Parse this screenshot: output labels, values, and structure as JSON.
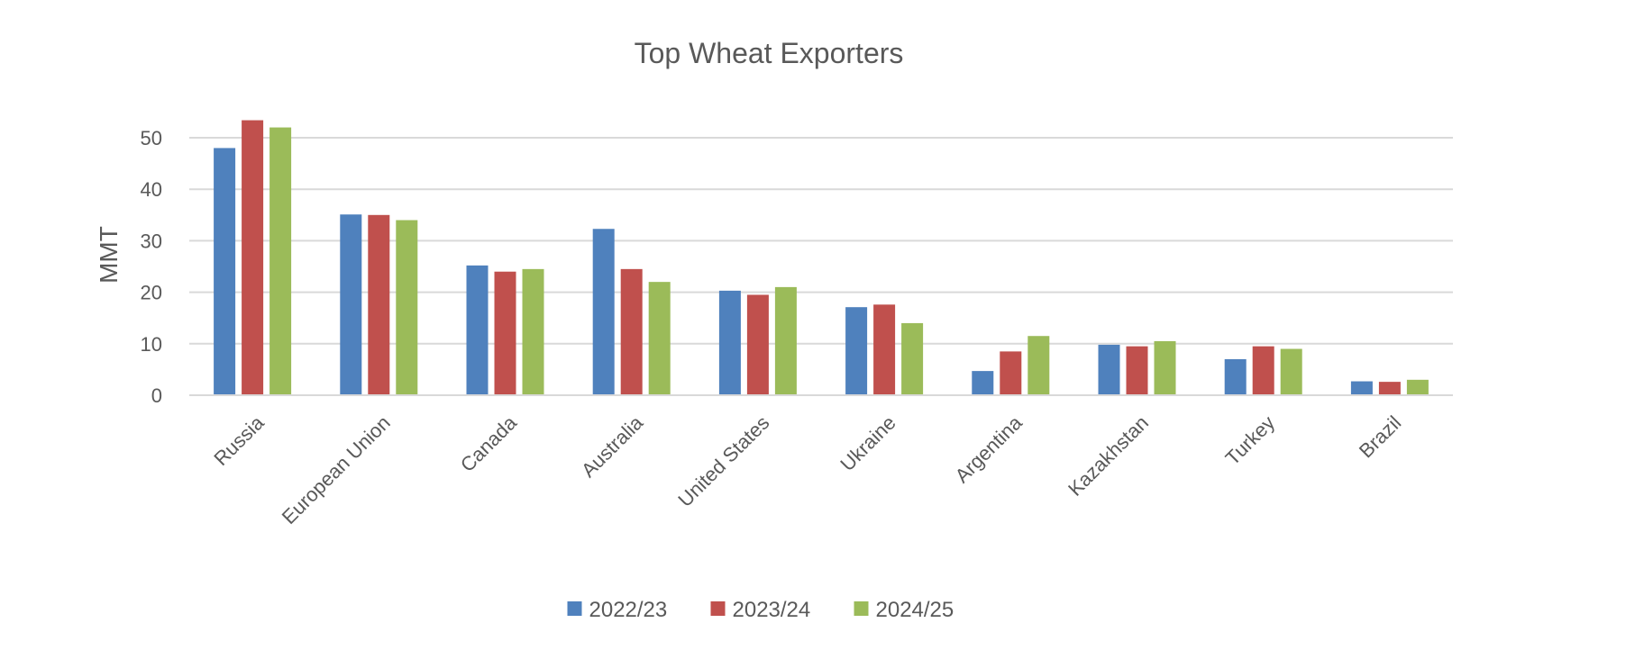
{
  "chart_data": {
    "type": "bar",
    "title": "Top Wheat Exporters",
    "xlabel": "",
    "ylabel": "MMT",
    "ylim": [
      0,
      55
    ],
    "yticks": [
      0,
      10,
      20,
      30,
      40,
      50
    ],
    "grid": true,
    "legend_position": "bottom",
    "categories": [
      "Russia",
      "European Union",
      "Canada",
      "Australia",
      "United States",
      "Ukraine",
      "Argentina",
      "Kazakhstan",
      "Turkey",
      "Brazil"
    ],
    "series": [
      {
        "name": "2022/23",
        "color": "#4f81bd",
        "values": [
          48,
          35.1,
          25.2,
          32.3,
          20.3,
          17.1,
          4.7,
          9.8,
          7.0,
          2.7
        ]
      },
      {
        "name": "2023/24",
        "color": "#c0504d",
        "values": [
          53.4,
          35.0,
          24.0,
          24.5,
          19.5,
          17.6,
          8.5,
          9.5,
          9.5,
          2.6
        ]
      },
      {
        "name": "2024/25",
        "color": "#9bbb59",
        "values": [
          52.0,
          34.0,
          24.5,
          22.0,
          21.0,
          14.0,
          11.5,
          10.5,
          9.0,
          3.0
        ]
      }
    ]
  }
}
